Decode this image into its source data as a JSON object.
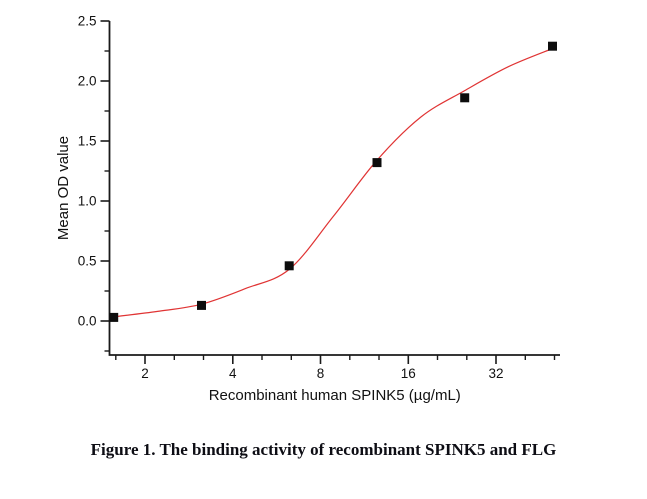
{
  "caption": {
    "text": "Figure 1. The binding activity of recombinant SPINK5 and FLG"
  },
  "chart_data": {
    "type": "scatter",
    "title": "",
    "xlabel": "Recombinant human SPINK5 (µg/mL)",
    "ylabel": "Mean OD value",
    "x_scale": "log2",
    "grid": false,
    "legend": null,
    "x": [
      1.5625,
      3.125,
      6.25,
      12.5,
      25,
      50
    ],
    "y": [
      0.03,
      0.13,
      0.46,
      1.32,
      1.86,
      2.29
    ],
    "x_ticks": [
      2,
      4,
      8,
      16,
      32
    ],
    "x_tick_labels": [
      "2",
      "4",
      "8",
      "16",
      "32"
    ],
    "y_ticks": [
      0.0,
      0.5,
      1.0,
      1.5,
      2.0,
      2.5
    ],
    "y_tick_labels": [
      "0.0",
      "0.5",
      "1.0",
      "1.5",
      "2.0",
      "2.5"
    ],
    "xlim": [
      1.505,
      53
    ],
    "ylim": [
      -0.283,
      2.5
    ],
    "y_minor_step": 0.25,
    "x_minor_per_octave": 2,
    "marker": {
      "shape": "square",
      "color": "#0d0d0d",
      "size": 9
    },
    "fit_curve": {
      "color": "#e03434",
      "width": 1.2,
      "points": [
        [
          1.5625,
          0.035
        ],
        [
          2.21,
          0.08
        ],
        [
          3.125,
          0.14
        ],
        [
          4.42,
          0.27
        ],
        [
          6.25,
          0.43
        ],
        [
          8.84,
          0.87
        ],
        [
          12.5,
          1.34
        ],
        [
          17.68,
          1.7
        ],
        [
          25,
          1.92
        ],
        [
          35.36,
          2.12
        ],
        [
          50,
          2.27
        ]
      ]
    },
    "axis_color": "#1a1a1a",
    "text_color": "#111111"
  }
}
